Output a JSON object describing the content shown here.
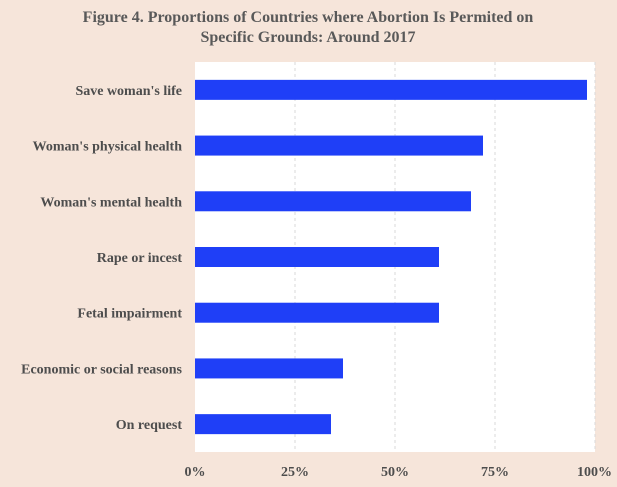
{
  "chart_data": {
    "type": "bar",
    "orientation": "horizontal",
    "title_lines": [
      "Figure 4. Proportions of Countries where Abortion Is Permited on",
      "Specific Grounds: Around 2017"
    ],
    "categories": [
      "Save woman's life",
      "Woman's physical health",
      "Woman's mental health",
      "Rape or incest",
      "Fetal impairment",
      "Economic or social reasons",
      "On request"
    ],
    "values": [
      98,
      72,
      69,
      61,
      61,
      37,
      34
    ],
    "xlim": [
      0,
      100
    ],
    "x_ticks": [
      0,
      25,
      50,
      75,
      100
    ],
    "x_tick_labels": [
      "0%",
      "25%",
      "50%",
      "75%",
      "100%"
    ],
    "grid": "vertical-dashed",
    "legend": "none",
    "colors": {
      "bar": "#1f3ff7",
      "background": "#f6e5da",
      "plot_area": "#ffffff",
      "grid": "#d9d9d9",
      "text": "#4d4d4d",
      "title": "#595959"
    }
  }
}
